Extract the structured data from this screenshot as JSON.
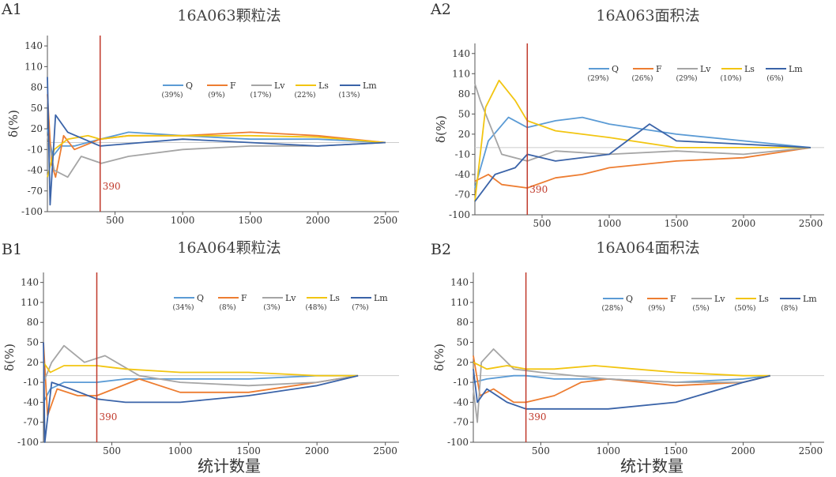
{
  "x_axis_caption": "统计数量",
  "palette": {
    "Q": "#5b9bd5",
    "F": "#ed7d31",
    "Lv": "#a5a5a5",
    "Ls": "#f2c511",
    "Lm": "#3a63a8",
    "marker": "#c0392b",
    "zero": "#cccccc"
  },
  "chart_data": [
    {
      "panel": "A1",
      "title": "16A063颗粒法",
      "type": "line",
      "ylabel": "δ(%)",
      "xlim": [
        0,
        2600
      ],
      "ylim": [
        -100,
        155
      ],
      "xticks": [
        500,
        1000,
        1500,
        2000,
        2500
      ],
      "yticks": [
        140,
        110,
        80,
        50,
        20,
        -10,
        -40,
        -70,
        -100
      ],
      "marker_x": 390,
      "marker_label": "390",
      "series": [
        {
          "name": "Q",
          "pct": "(39%)",
          "x": [
            0,
            40,
            100,
            200,
            390,
            600,
            1000,
            1500,
            2000,
            2500
          ],
          "y": [
            20,
            -20,
            -5,
            -5,
            5,
            15,
            10,
            5,
            5,
            0
          ]
        },
        {
          "name": "F",
          "pct": "(9%)",
          "x": [
            0,
            30,
            60,
            120,
            200,
            390,
            600,
            1000,
            1500,
            2000,
            2500
          ],
          "y": [
            70,
            -30,
            -50,
            10,
            -10,
            5,
            10,
            10,
            15,
            10,
            0
          ]
        },
        {
          "name": "Lv",
          "pct": "(17%)",
          "x": [
            0,
            50,
            150,
            250,
            400,
            600,
            1000,
            1500,
            2000,
            2500
          ],
          "y": [
            10,
            -40,
            -50,
            -20,
            -30,
            -20,
            -10,
            -5,
            -5,
            0
          ]
        },
        {
          "name": "Ls",
          "pct": "(22%)",
          "x": [
            0,
            50,
            150,
            300,
            390,
            600,
            1000,
            1500,
            2000,
            2500
          ],
          "y": [
            -50,
            -10,
            5,
            10,
            5,
            10,
            10,
            10,
            8,
            0
          ]
        },
        {
          "name": "Lm",
          "pct": "(13%)",
          "x": [
            0,
            20,
            60,
            150,
            390,
            700,
            1000,
            1500,
            2000,
            2500
          ],
          "y": [
            95,
            -90,
            40,
            15,
            -5,
            0,
            5,
            0,
            -5,
            0
          ]
        }
      ]
    },
    {
      "panel": "A2",
      "title": "16A063面积法",
      "type": "line",
      "ylabel": "δ(%)",
      "xlim": [
        0,
        2600
      ],
      "ylim": [
        -100,
        155
      ],
      "xticks": [
        500,
        1000,
        1500,
        2000,
        2500
      ],
      "yticks": [
        140,
        110,
        80,
        50,
        20,
        -10,
        -40,
        -70,
        -100
      ],
      "marker_x": 390,
      "marker_label": "390",
      "series": [
        {
          "name": "Q",
          "pct": "(29%)",
          "x": [
            0,
            100,
            250,
            390,
            600,
            800,
            1000,
            1500,
            2000,
            2500
          ],
          "y": [
            -60,
            10,
            45,
            30,
            40,
            45,
            35,
            20,
            10,
            0
          ]
        },
        {
          "name": "F",
          "pct": "(26%)",
          "x": [
            0,
            100,
            200,
            390,
            600,
            800,
            1000,
            1500,
            2000,
            2500
          ],
          "y": [
            -50,
            -40,
            -55,
            -60,
            -45,
            -40,
            -30,
            -20,
            -15,
            0
          ]
        },
        {
          "name": "Lv",
          "pct": "(29%)",
          "x": [
            0,
            40,
            100,
            200,
            390,
            600,
            1000,
            1500,
            2000,
            2500
          ],
          "y": [
            95,
            70,
            40,
            -10,
            -20,
            -5,
            -10,
            -5,
            -10,
            0
          ]
        },
        {
          "name": "Ls",
          "pct": "(10%)",
          "x": [
            0,
            80,
            180,
            300,
            390,
            600,
            1000,
            1500,
            2000,
            2500
          ],
          "y": [
            -80,
            60,
            100,
            70,
            40,
            25,
            15,
            0,
            0,
            0
          ]
        },
        {
          "name": "Lm",
          "pct": "(6%)",
          "x": [
            0,
            150,
            300,
            390,
            600,
            1000,
            1300,
            1500,
            2000,
            2500
          ],
          "y": [
            -80,
            -40,
            -30,
            -10,
            -20,
            -10,
            35,
            10,
            5,
            0
          ]
        }
      ]
    },
    {
      "panel": "B1",
      "title": "16A064颗粒法",
      "type": "line",
      "ylabel": "δ(%)",
      "xlim": [
        0,
        2600
      ],
      "ylim": [
        -100,
        155
      ],
      "xticks": [
        500,
        1000,
        1500,
        2000,
        2500
      ],
      "yticks": [
        140,
        110,
        80,
        50,
        20,
        -10,
        -40,
        -70,
        -100
      ],
      "marker_x": 390,
      "marker_label": "390",
      "series": [
        {
          "name": "Q",
          "pct": "(34%)",
          "x": [
            0,
            50,
            150,
            390,
            600,
            1000,
            1500,
            2000,
            2300
          ],
          "y": [
            -40,
            -20,
            -10,
            -10,
            -5,
            -5,
            -5,
            0,
            0
          ]
        },
        {
          "name": "F",
          "pct": "(8%)",
          "x": [
            0,
            30,
            100,
            250,
            390,
            700,
            1000,
            1500,
            2000,
            2300
          ],
          "y": [
            50,
            -60,
            -20,
            -30,
            -30,
            -5,
            -25,
            -25,
            -10,
            0
          ]
        },
        {
          "name": "Lv",
          "pct": "(3%)",
          "x": [
            0,
            60,
            150,
            300,
            450,
            700,
            1000,
            1500,
            2000,
            2300
          ],
          "y": [
            -10,
            20,
            45,
            20,
            30,
            0,
            -10,
            -15,
            -10,
            0
          ]
        },
        {
          "name": "Ls",
          "pct": "(48%)",
          "x": [
            0,
            50,
            150,
            390,
            600,
            1000,
            1500,
            2000,
            2300
          ],
          "y": [
            20,
            5,
            15,
            15,
            10,
            5,
            5,
            0,
            0
          ]
        },
        {
          "name": "Lm",
          "pct": "(7%)",
          "x": [
            0,
            10,
            60,
            200,
            390,
            600,
            1000,
            1500,
            2000,
            2300
          ],
          "y": [
            50,
            -100,
            -10,
            -20,
            -35,
            -40,
            -40,
            -30,
            -15,
            0
          ]
        }
      ]
    },
    {
      "panel": "B2",
      "title": "16A064面积法",
      "type": "line",
      "ylabel": "δ(%)",
      "xlim": [
        0,
        2600
      ],
      "ylim": [
        -100,
        155
      ],
      "xticks": [
        500,
        1000,
        1500,
        2000,
        2500
      ],
      "yticks": [
        140,
        110,
        80,
        50,
        20,
        -10,
        -40,
        -70,
        -100
      ],
      "marker_x": 390,
      "marker_label": "390",
      "series": [
        {
          "name": "Q",
          "pct": "(28%)",
          "x": [
            0,
            100,
            300,
            390,
            600,
            1000,
            1500,
            2000,
            2200
          ],
          "y": [
            -10,
            -5,
            0,
            0,
            -5,
            -5,
            -10,
            -5,
            0
          ]
        },
        {
          "name": "F",
          "pct": "(9%)",
          "x": [
            0,
            50,
            150,
            300,
            390,
            600,
            800,
            1000,
            1500,
            2000,
            2200
          ],
          "y": [
            30,
            -30,
            -20,
            -40,
            -40,
            -30,
            -10,
            -5,
            -15,
            -10,
            0
          ]
        },
        {
          "name": "Lv",
          "pct": "(5%)",
          "x": [
            0,
            30,
            60,
            150,
            300,
            500,
            1000,
            1500,
            2000,
            2200
          ],
          "y": [
            -20,
            -70,
            20,
            40,
            10,
            5,
            -5,
            -10,
            -10,
            0
          ]
        },
        {
          "name": "Ls",
          "pct": "(50%)",
          "x": [
            0,
            100,
            250,
            390,
            600,
            900,
            1200,
            1500,
            2000,
            2200
          ],
          "y": [
            20,
            10,
            15,
            10,
            10,
            15,
            10,
            5,
            0,
            0
          ]
        },
        {
          "name": "Lm",
          "pct": "(8%)",
          "x": [
            0,
            30,
            100,
            250,
            390,
            700,
            1000,
            1500,
            2000,
            2200
          ],
          "y": [
            10,
            -40,
            -20,
            -40,
            -50,
            -50,
            -50,
            -40,
            -10,
            0
          ]
        }
      ]
    }
  ]
}
